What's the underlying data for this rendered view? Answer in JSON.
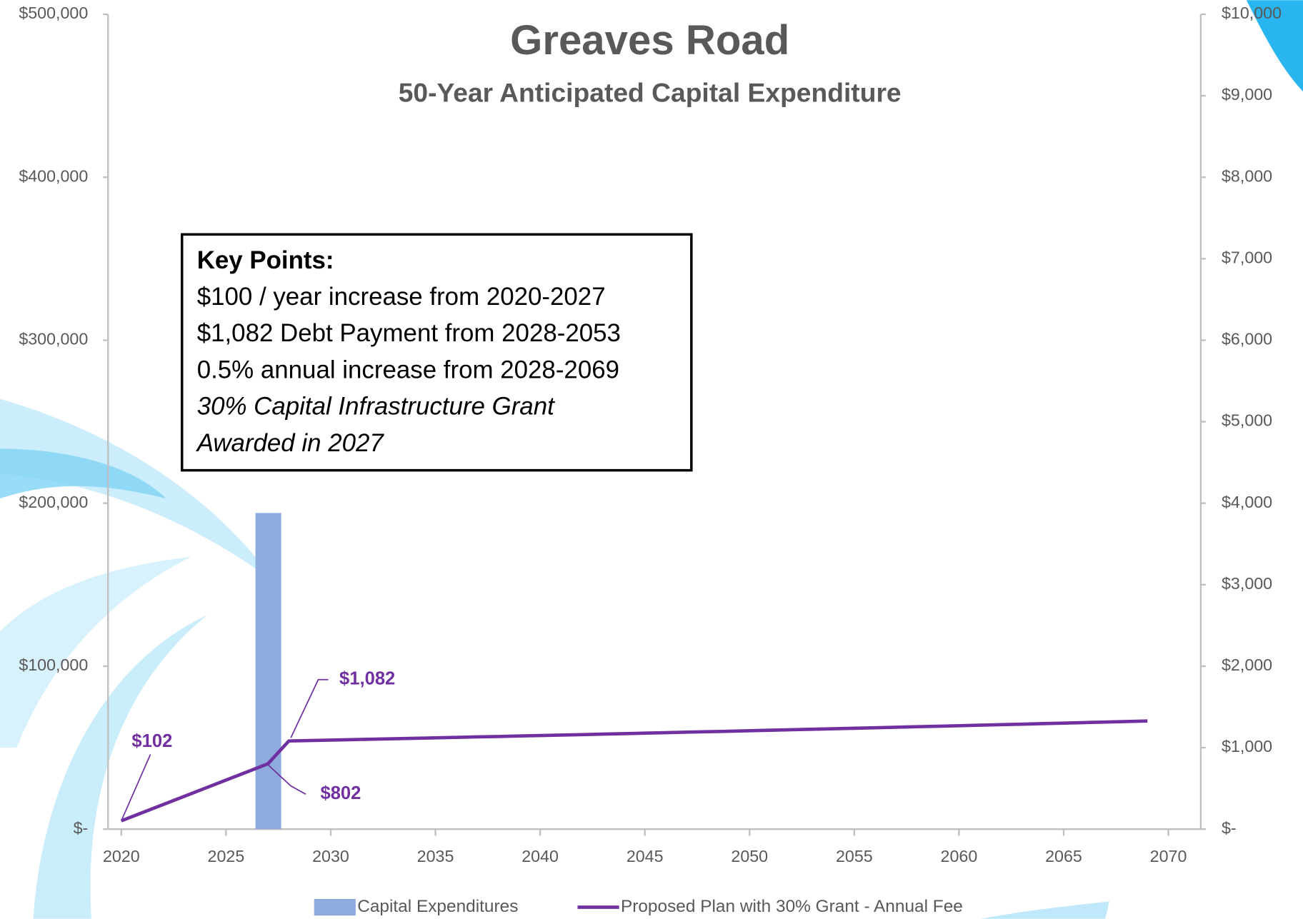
{
  "chart_data": {
    "type": "combo",
    "title": "Greaves Road",
    "subtitle": "50-Year Anticipated Capital Expenditure",
    "annotations": [
      {
        "text": "Key Points:",
        "style": "bold"
      },
      {
        "text": "$100 / year increase from 2020-2027",
        "style": "normal"
      },
      {
        "text": "$1,082 Debt Payment from 2028-2053",
        "style": "normal"
      },
      {
        "text": "0.5% annual increase from 2028-2069",
        "style": "normal"
      },
      {
        "text": "30% Capital Infrastructure Grant",
        "style": "italic"
      },
      {
        "text": "Awarded in 2027",
        "style": "italic"
      }
    ],
    "xlim": [
      2020,
      2070
    ],
    "xticks": [
      2020,
      2025,
      2030,
      2035,
      2040,
      2045,
      2050,
      2055,
      2060,
      2065,
      2070
    ],
    "ylim": [
      0,
      500000
    ],
    "yticks": [
      {
        "value": 0,
        "label": "$-"
      },
      {
        "value": 100000,
        "label": "$100,000"
      },
      {
        "value": 200000,
        "label": "$200,000"
      },
      {
        "value": 300000,
        "label": "$300,000"
      },
      {
        "value": 400000,
        "label": "$400,000"
      },
      {
        "value": 500000,
        "label": "$500,000"
      }
    ],
    "y2lim": [
      0,
      10000
    ],
    "y2ticks": [
      {
        "value": 0,
        "label": "$-"
      },
      {
        "value": 1000,
        "label": "$1,000"
      },
      {
        "value": 2000,
        "label": "$2,000"
      },
      {
        "value": 3000,
        "label": "$3,000"
      },
      {
        "value": 4000,
        "label": "$4,000"
      },
      {
        "value": 5000,
        "label": "$5,000"
      },
      {
        "value": 6000,
        "label": "$6,000"
      },
      {
        "value": 7000,
        "label": "$7,000"
      },
      {
        "value": 8000,
        "label": "$8,000"
      },
      {
        "value": 9000,
        "label": "$9,000"
      },
      {
        "value": 10000,
        "label": "$10,000"
      }
    ],
    "legend": "bottom",
    "series": [
      {
        "name": "Capital Expenditures",
        "type": "bar",
        "color": "#8faadc",
        "x": [
          2027
        ],
        "values": [
          194000
        ]
      },
      {
        "name": "Proposed Plan with 30% Grant - Annual Fee",
        "type": "line",
        "color": "#7030a0",
        "axis": "y2",
        "x": [
          2020,
          2021,
          2022,
          2023,
          2024,
          2025,
          2026,
          2027,
          2028,
          2029,
          2030,
          2031,
          2032,
          2033,
          2034,
          2035,
          2036,
          2037,
          2038,
          2039,
          2040,
          2041,
          2042,
          2043,
          2044,
          2045,
          2046,
          2047,
          2048,
          2049,
          2050,
          2051,
          2052,
          2053,
          2054,
          2055,
          2056,
          2057,
          2058,
          2059,
          2060,
          2061,
          2062,
          2063,
          2064,
          2065,
          2066,
          2067,
          2068,
          2069
        ],
        "values": [
          102,
          202,
          302,
          402,
          502,
          602,
          702,
          802,
          1082,
          1087,
          1093,
          1098,
          1104,
          1109,
          1115,
          1120,
          1126,
          1132,
          1137,
          1143,
          1149,
          1154,
          1160,
          1166,
          1172,
          1178,
          1184,
          1190,
          1196,
          1201,
          1208,
          1214,
          1220,
          1226,
          1232,
          1238,
          1244,
          1251,
          1257,
          1263,
          1269,
          1276,
          1282,
          1288,
          1295,
          1301,
          1308,
          1314,
          1321,
          1327
        ],
        "value_labels": [
          "$102",
          null,
          null,
          null,
          null,
          null,
          null,
          "$802",
          "$1,082",
          null,
          null,
          null,
          null,
          null,
          null,
          null,
          null,
          null,
          null,
          null,
          null,
          null,
          null,
          null,
          null,
          null,
          null,
          null,
          null,
          null,
          null,
          null,
          null,
          null,
          null,
          null,
          null,
          null,
          null,
          null,
          null,
          null,
          null,
          null,
          null,
          null,
          null,
          null,
          null,
          null
        ]
      }
    ]
  }
}
